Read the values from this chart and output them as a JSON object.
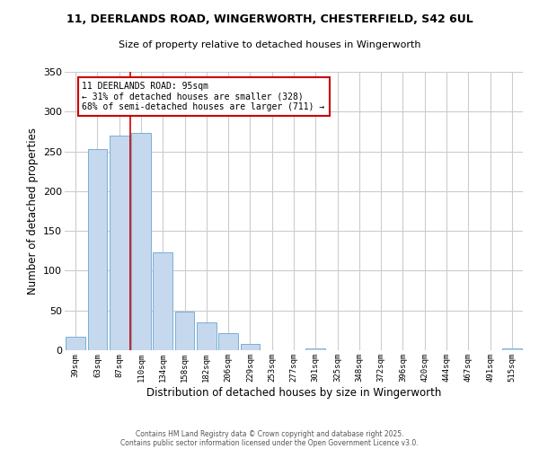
{
  "title1": "11, DEERLANDS ROAD, WINGERWORTH, CHESTERFIELD, S42 6UL",
  "title2": "Size of property relative to detached houses in Wingerworth",
  "xlabel": "Distribution of detached houses by size in Wingerworth",
  "ylabel": "Number of detached properties",
  "bar_labels": [
    "39sqm",
    "63sqm",
    "87sqm",
    "110sqm",
    "134sqm",
    "158sqm",
    "182sqm",
    "206sqm",
    "229sqm",
    "253sqm",
    "277sqm",
    "301sqm",
    "325sqm",
    "348sqm",
    "372sqm",
    "396sqm",
    "420sqm",
    "444sqm",
    "467sqm",
    "491sqm",
    "515sqm"
  ],
  "bar_values": [
    17,
    253,
    270,
    273,
    123,
    48,
    35,
    21,
    8,
    0,
    0,
    2,
    0,
    0,
    0,
    0,
    0,
    0,
    0,
    0,
    2
  ],
  "bar_color": "#c5d8ed",
  "bar_edgecolor": "#7bafd4",
  "vline_x": 2.5,
  "vline_color": "#cc0000",
  "annotation_text": "11 DEERLANDS ROAD: 95sqm\n← 31% of detached houses are smaller (328)\n68% of semi-detached houses are larger (711) →",
  "annotation_box_edgecolor": "#cc0000",
  "ylim": [
    0,
    350
  ],
  "yticks": [
    0,
    50,
    100,
    150,
    200,
    250,
    300,
    350
  ],
  "background_color": "#ffffff",
  "grid_color": "#cccccc",
  "footer1": "Contains HM Land Registry data © Crown copyright and database right 2025.",
  "footer2": "Contains public sector information licensed under the Open Government Licence v3.0."
}
